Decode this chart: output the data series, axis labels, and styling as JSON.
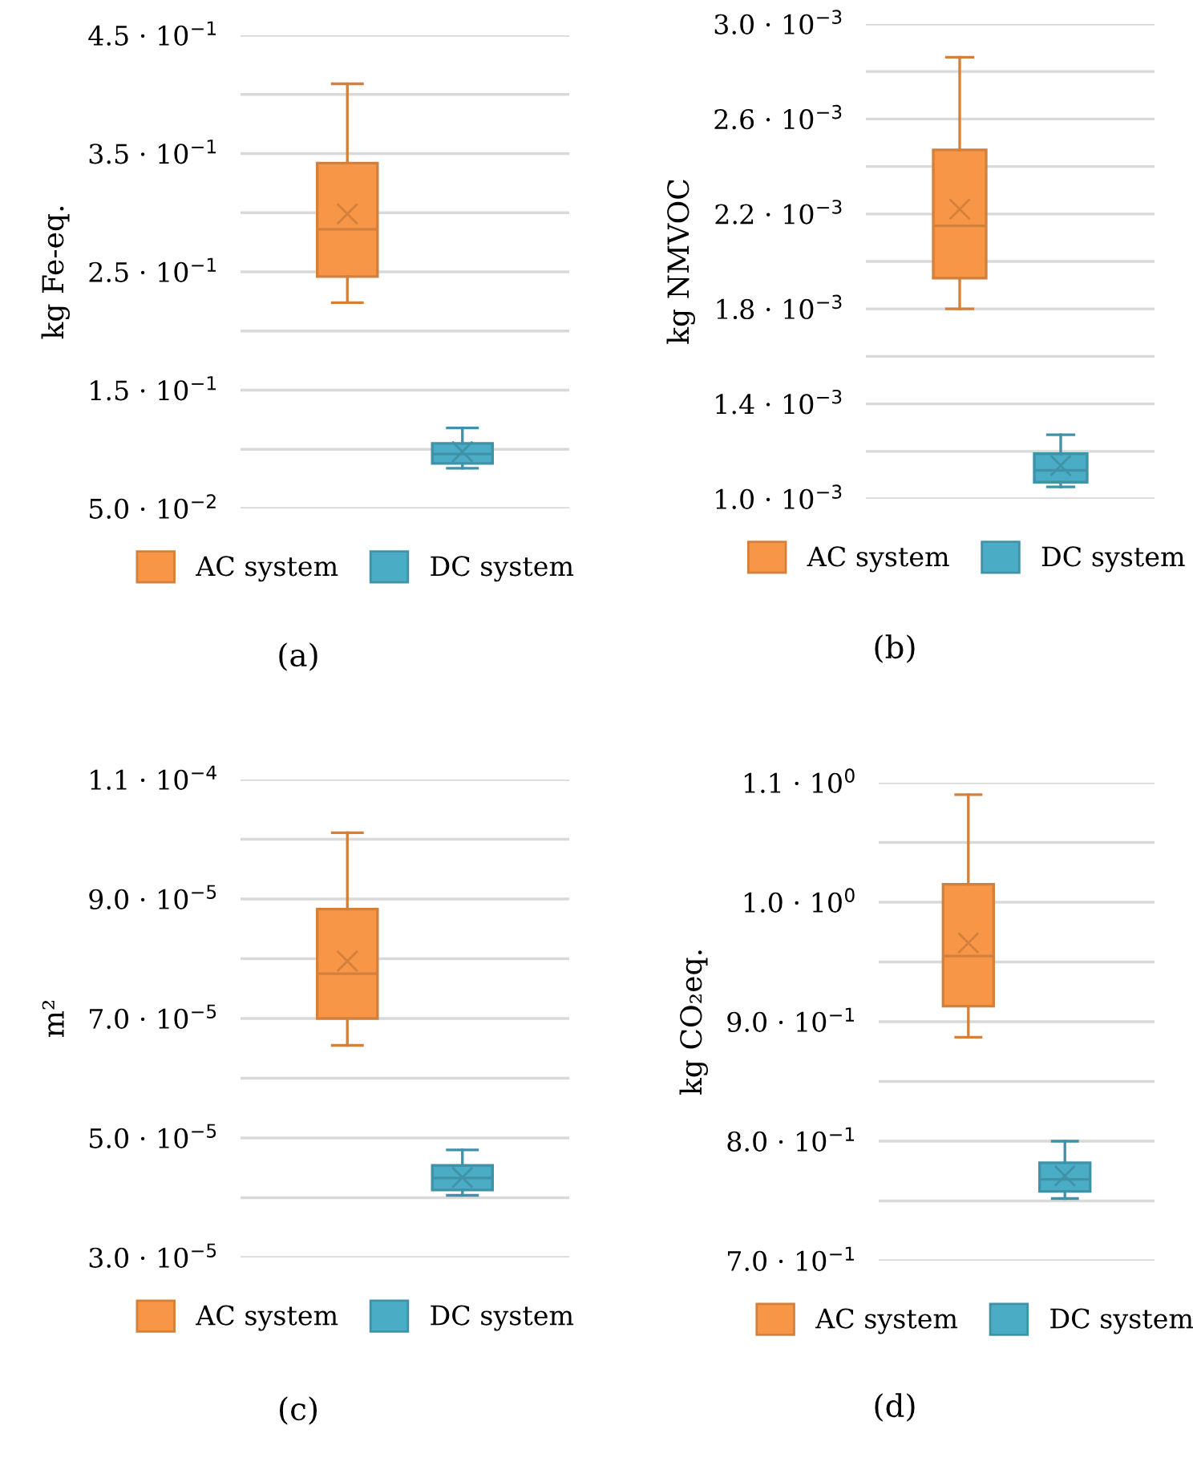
{
  "chart_data": [
    {
      "type": "box",
      "ylabel": "kg Fe-eq.",
      "categories": [
        null
      ],
      "legend": "bottom",
      "grid": "y",
      "tick_labels": "y",
      "annotations": [
        "(a)"
      ],
      "ylim": [
        0.05,
        0.45
      ],
      "yticks": [
        {
          "value": 0.05,
          "label": "5.0 · 10$^{−2}$"
        },
        {
          "value": 0.1,
          "label": null
        },
        {
          "value": 0.15,
          "label": "1.5 · 10$^{−1}$"
        },
        {
          "value": 0.2,
          "label": null
        },
        {
          "value": 0.25,
          "label": "2.5 · 10$^{−1}$"
        },
        {
          "value": 0.3,
          "label": null
        },
        {
          "value": 0.35,
          "label": "3.5 · 10$^{−1}$"
        },
        {
          "value": 0.4,
          "label": null
        },
        {
          "value": 0.45,
          "label": "4.5 · 10$^{−1}$"
        }
      ],
      "series": [
        {
          "name": "AC system",
          "color": "#f79646",
          "boxes": [
            {
              "low": 0.224,
              "q1": 0.246,
              "median": 0.286,
              "q3": 0.342,
              "high": 0.409,
              "mean": 0.299
            }
          ]
        },
        {
          "name": "DC system",
          "color": "#4bacc6",
          "boxes": [
            {
              "low": 0.084,
              "q1": 0.088,
              "median": 0.096,
              "q3": 0.105,
              "high": 0.118,
              "mean": 0.098
            }
          ]
        }
      ]
    },
    {
      "type": "box",
      "ylabel": "kg NMVOC",
      "categories": [
        null
      ],
      "legend": "bottom",
      "grid": "y",
      "tick_labels": "y",
      "annotations": [
        "(b)"
      ],
      "ylim": [
        0.001,
        0.003
      ],
      "yticks": [
        {
          "value": 0.001,
          "label": "1.0 · 10$^{−3}$"
        },
        {
          "value": 0.0012,
          "label": null
        },
        {
          "value": 0.0014,
          "label": "1.4 · 10$^{−3}$"
        },
        {
          "value": 0.0016,
          "label": null
        },
        {
          "value": 0.0018,
          "label": "1.8 · 10$^{−3}$"
        },
        {
          "value": 0.002,
          "label": null
        },
        {
          "value": 0.0022,
          "label": "2.2 · 10$^{−3}$"
        },
        {
          "value": 0.0024,
          "label": null
        },
        {
          "value": 0.0026,
          "label": "2.6 · 10$^{−3}$"
        },
        {
          "value": 0.0028,
          "label": null
        },
        {
          "value": 0.003,
          "label": "3.0 · 10$^{−3}$"
        }
      ],
      "series": [
        {
          "name": "AC system",
          "color": "#f79646",
          "boxes": [
            {
              "low": 0.0018,
              "q1": 0.00193,
              "median": 0.00215,
              "q3": 0.00247,
              "high": 0.00286,
              "mean": 0.00222
            }
          ]
        },
        {
          "name": "DC system",
          "color": "#4bacc6",
          "boxes": [
            {
              "low": 0.00105,
              "q1": 0.00107,
              "median": 0.00112,
              "q3": 0.00119,
              "high": 0.00127,
              "mean": 0.00114
            }
          ]
        }
      ]
    },
    {
      "type": "box",
      "ylabel": "m²",
      "categories": [
        null
      ],
      "legend": "bottom",
      "grid": "y",
      "tick_labels": "y",
      "annotations": [
        "(c)"
      ],
      "ylim": [
        3e-05,
        0.00011
      ],
      "yticks": [
        {
          "value": 3e-05,
          "label": "3.0 · 10$^{−5}$"
        },
        {
          "value": 4e-05,
          "label": null
        },
        {
          "value": 5e-05,
          "label": "5.0 · 10$^{−5}$"
        },
        {
          "value": 6e-05,
          "label": null
        },
        {
          "value": 7e-05,
          "label": "7.0 · 10$^{−5}$"
        },
        {
          "value": 8e-05,
          "label": null
        },
        {
          "value": 9e-05,
          "label": "9.0 · 10$^{−5}$"
        },
        {
          "value": 0.0001,
          "label": null
        },
        {
          "value": 0.00011,
          "label": "1.1 · 10$^{−4}$"
        }
      ],
      "series": [
        {
          "name": "AC system",
          "color": "#f79646",
          "boxes": [
            {
              "low": 6.55e-05,
              "q1": 7e-05,
              "median": 7.75e-05,
              "q3": 8.83e-05,
              "high": 0.0001011,
              "mean": 7.96e-05
            }
          ]
        },
        {
          "name": "DC system",
          "color": "#4bacc6",
          "boxes": [
            {
              "low": 4.04e-05,
              "q1": 4.13e-05,
              "median": 4.33e-05,
              "q3": 4.54e-05,
              "high": 4.8e-05,
              "mean": 4.34e-05
            }
          ]
        }
      ]
    },
    {
      "type": "box",
      "ylabel": "kg CO₂eq.",
      "categories": [
        null
      ],
      "legend": "bottom",
      "grid": "y",
      "tick_labels": "y",
      "annotations": [
        "(d)"
      ],
      "ylim": [
        0.7,
        1.1
      ],
      "yticks": [
        {
          "value": 0.7,
          "label": "7.0 · 10$^{−1}$"
        },
        {
          "value": 0.75,
          "label": null
        },
        {
          "value": 0.8,
          "label": "8.0 · 10$^{−1}$"
        },
        {
          "value": 0.85,
          "label": null
        },
        {
          "value": 0.9,
          "label": "9.0 · 10$^{−1}$"
        },
        {
          "value": 0.95,
          "label": null
        },
        {
          "value": 1.0,
          "label": "1.0 · 10$^{0}$"
        },
        {
          "value": 1.05,
          "label": null
        },
        {
          "value": 1.1,
          "label": "1.1 · 10$^{0}$"
        }
      ],
      "series": [
        {
          "name": "AC system",
          "color": "#f79646",
          "boxes": [
            {
              "low": 0.887,
              "q1": 0.913,
              "median": 0.955,
              "q3": 1.015,
              "high": 1.09,
              "mean": 0.966
            }
          ]
        },
        {
          "name": "DC system",
          "color": "#4bacc6",
          "boxes": [
            {
              "low": 0.752,
              "q1": 0.758,
              "median": 0.768,
              "q3": 0.782,
              "high": 0.8,
              "mean": 0.771
            }
          ]
        }
      ]
    }
  ]
}
